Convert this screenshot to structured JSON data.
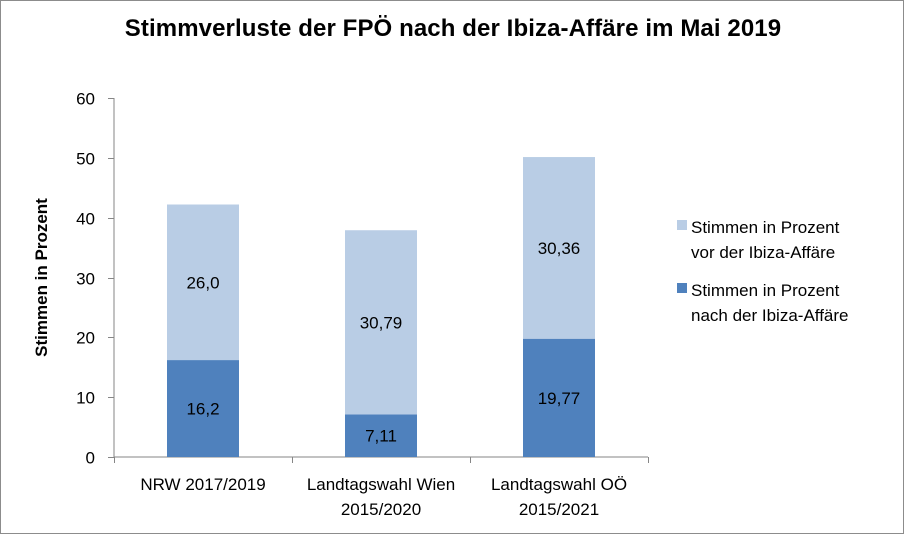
{
  "colors": {
    "series_before": "#b9cde5",
    "series_after": "#4f81bd",
    "axis": "#868686",
    "text": "#000000"
  },
  "chart_data": {
    "type": "bar",
    "stacked": true,
    "title": "Stimmverluste der FPÖ nach der Ibiza-Affäre im Mai 2019",
    "xlabel": "",
    "ylabel": "Stimmen in Prozent",
    "ylim": [
      0,
      60
    ],
    "y_ticks": [
      "0",
      "10",
      "20",
      "30",
      "40",
      "50",
      "60"
    ],
    "grid": false,
    "legend_position": "right",
    "categories": [
      [
        "NRW 2017/2019"
      ],
      [
        "Landtagswahl Wien",
        "2015/2020"
      ],
      [
        "Landtagswahl OÖ",
        "2015/2021"
      ]
    ],
    "series": [
      {
        "name": [
          "Stimmen in Prozent",
          "nach der Ibiza-Affäre"
        ],
        "color": "#4f81bd",
        "values": [
          16.2,
          7.11,
          19.77
        ],
        "labels": [
          "16,2",
          "7,11",
          "19,77"
        ]
      },
      {
        "name": [
          "Stimmen in Prozent",
          "vor der Ibiza-Affäre"
        ],
        "color": "#b9cde5",
        "values": [
          26.0,
          30.79,
          30.36
        ],
        "labels": [
          "26,0",
          "30,79",
          "30,36"
        ]
      }
    ],
    "legend_order": [
      1,
      0
    ]
  }
}
